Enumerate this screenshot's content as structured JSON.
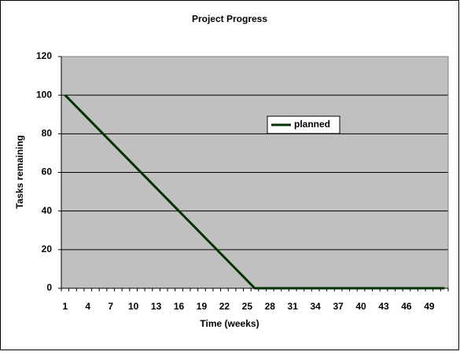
{
  "chart_data": {
    "type": "line",
    "title": "Project Progress",
    "x_label": "Time (weeks)",
    "y_label": "Tasks remaining",
    "categories": [
      "1",
      null,
      null,
      "4",
      null,
      null,
      "7",
      null,
      null,
      "10",
      null,
      null,
      "13",
      null,
      null,
      "16",
      null,
      null,
      "19",
      null,
      null,
      "22",
      null,
      null,
      "25",
      null,
      null,
      "28",
      null,
      null,
      "31",
      null,
      null,
      "34",
      null,
      null,
      "37",
      null,
      null,
      "40",
      null,
      null,
      "43",
      null,
      null,
      "46",
      null,
      null,
      "49",
      null,
      null
    ],
    "series": [
      {
        "name": "planned",
        "color": "#003300",
        "values": [
          100,
          96,
          92,
          88,
          84,
          80,
          76,
          72,
          68,
          64,
          60,
          56,
          52,
          48,
          44,
          40,
          36,
          32,
          28,
          24,
          20,
          16,
          12,
          8,
          4,
          0,
          0,
          0,
          0,
          0,
          0,
          0,
          0,
          0,
          0,
          0,
          0,
          0,
          0,
          0,
          0,
          0,
          0,
          0,
          0,
          0,
          0,
          0,
          0,
          0,
          0
        ]
      }
    ],
    "ylim": [
      0,
      120
    ],
    "yticks": [
      0,
      20,
      40,
      60,
      80,
      100,
      120
    ],
    "grid": true,
    "plot_background": "#c0c0c0"
  }
}
